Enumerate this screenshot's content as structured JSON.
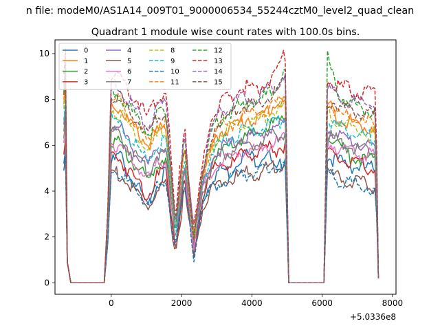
{
  "chart_data": {
    "type": "line",
    "suptitle": "n file: modeM0/AS1A14_009T01_9000006534_55244cztM0_level2_quad_clean",
    "title": "Quadrant 1 module wise count rates with 100.0s bins.",
    "xlabel": "",
    "ylabel": "",
    "x_offset_label": "+5.0336e8",
    "xlim": [
      -1600,
      8100
    ],
    "ylim": [
      -0.5,
      10.6
    ],
    "xticks": [
      0,
      2000,
      4000,
      6000,
      8000
    ],
    "xtick_labels": [
      "0",
      "2000",
      "4000",
      "6000",
      "8000"
    ],
    "yticks": [
      0,
      2,
      4,
      6,
      8,
      10
    ],
    "ytick_labels": [
      "0",
      "2",
      "4",
      "6",
      "8",
      "10"
    ],
    "grid": false,
    "legend_position": "top-left",
    "legend_columns": 4,
    "segments": [
      [
        -1300,
        -200
      ],
      [
        -200,
        5050
      ],
      [
        5050,
        6100
      ],
      [
        6100,
        7600
      ]
    ],
    "series": [
      {
        "name": "0",
        "color": "#1f77b4",
        "dash": "solid",
        "shape": [
          5.2,
          5.6,
          4.6,
          4.1,
          3.2,
          4.4,
          4.8,
          1.2,
          4.8,
          1.5,
          3.6,
          4.6,
          5.0,
          4.8,
          5.5,
          5.6,
          5.3,
          5.8,
          4.7,
          5.6
        ],
        "tail": [
          5.5,
          5.3,
          5.1,
          5.0,
          5.0
        ]
      },
      {
        "name": "1",
        "color": "#ff7f0e",
        "dash": "solid",
        "shape": [
          7.8,
          7.6,
          7.0,
          6.5,
          6.0,
          6.6,
          6.8,
          2.2,
          5.8,
          1.8,
          4.6,
          5.9,
          6.6,
          6.8,
          7.0,
          7.2,
          7.1,
          7.5,
          7.8,
          8.0
        ],
        "tail": [
          7.8,
          7.2,
          7.0,
          6.8,
          6.8
        ]
      },
      {
        "name": "2",
        "color": "#2ca02c",
        "dash": "solid",
        "shape": [
          6.3,
          6.0,
          5.4,
          5.0,
          4.4,
          5.2,
          5.6,
          1.8,
          5.0,
          1.6,
          4.2,
          5.2,
          5.7,
          5.9,
          6.2,
          6.4,
          6.5,
          6.8,
          7.0,
          7.2
        ],
        "tail": [
          6.6,
          6.0,
          5.5,
          5.4,
          5.3
        ]
      },
      {
        "name": "3",
        "color": "#d62728",
        "dash": "solid",
        "shape": [
          5.6,
          5.4,
          4.8,
          4.4,
          3.8,
          4.6,
          5.0,
          1.5,
          4.6,
          1.3,
          3.8,
          4.8,
          5.2,
          5.1,
          5.5,
          5.7,
          5.6,
          5.9,
          5.8,
          6.0
        ],
        "tail": [
          5.6,
          5.4,
          5.2,
          5.1,
          5.0
        ]
      },
      {
        "name": "4",
        "color": "#9467bd",
        "dash": "solid",
        "shape": [
          6.9,
          6.7,
          6.1,
          5.6,
          5.0,
          5.8,
          6.0,
          2.0,
          5.4,
          1.7,
          4.3,
          5.4,
          5.9,
          6.0,
          6.3,
          6.4,
          6.4,
          6.6,
          6.8,
          7.0
        ],
        "tail": [
          6.8,
          6.4,
          6.2,
          6.0,
          5.9
        ]
      },
      {
        "name": "5",
        "color": "#8c564b",
        "dash": "solid",
        "shape": [
          4.9,
          4.7,
          4.2,
          3.8,
          3.3,
          3.9,
          4.2,
          1.3,
          4.1,
          1.1,
          3.3,
          4.1,
          4.5,
          4.4,
          4.7,
          4.8,
          4.7,
          5.0,
          5.1,
          5.2
        ],
        "tail": [
          4.8,
          4.6,
          4.4,
          4.3,
          4.2
        ]
      },
      {
        "name": "6",
        "color": "#e377c2",
        "dash": "solid",
        "shape": [
          6.1,
          6.0,
          5.4,
          5.0,
          4.5,
          5.2,
          5.4,
          1.9,
          5.0,
          1.6,
          4.0,
          4.9,
          5.3,
          5.4,
          5.7,
          5.8,
          5.8,
          6.0,
          6.1,
          6.3
        ],
        "tail": [
          6.2,
          5.9,
          5.7,
          5.6,
          5.5
        ]
      },
      {
        "name": "7",
        "color": "#7f7f7f",
        "dash": "solid",
        "shape": [
          6.6,
          6.4,
          5.8,
          5.3,
          4.8,
          5.6,
          5.8,
          1.9,
          5.2,
          1.7,
          4.1,
          5.1,
          5.6,
          5.7,
          6.0,
          6.1,
          6.1,
          6.3,
          6.4,
          6.6
        ],
        "tail": [
          6.5,
          6.1,
          5.9,
          5.8,
          5.7
        ]
      },
      {
        "name": "8",
        "color": "#bcbd22",
        "dash": "dashed",
        "shape": [
          7.6,
          7.4,
          6.8,
          6.3,
          5.7,
          6.4,
          6.6,
          2.2,
          5.8,
          1.9,
          4.6,
          6.0,
          6.5,
          6.7,
          7.0,
          7.1,
          7.0,
          7.3,
          7.5,
          7.7
        ],
        "tail": [
          7.4,
          7.0,
          6.8,
          6.6,
          6.5
        ]
      },
      {
        "name": "9",
        "color": "#17becf",
        "dash": "dashed",
        "shape": [
          7.1,
          6.9,
          6.3,
          5.8,
          5.3,
          6.0,
          6.2,
          2.1,
          5.6,
          1.8,
          4.5,
          5.7,
          6.1,
          6.3,
          6.6,
          6.7,
          6.6,
          6.9,
          7.0,
          7.2
        ],
        "tail": [
          7.1,
          6.8,
          6.6,
          6.4,
          6.3
        ]
      },
      {
        "name": "10",
        "color": "#1f77b4",
        "dash": "dashed",
        "shape": [
          4.9,
          4.8,
          4.3,
          3.9,
          3.5,
          4.1,
          4.4,
          1.4,
          4.2,
          1.2,
          3.4,
          4.1,
          4.4,
          4.5,
          4.7,
          4.8,
          4.8,
          5.0,
          5.1,
          5.2
        ],
        "tail": [
          4.7,
          4.5,
          4.3,
          4.2,
          4.1
        ]
      },
      {
        "name": "11",
        "color": "#ff7f0e",
        "dash": "dashed",
        "shape": [
          8.0,
          7.8,
          7.2,
          6.7,
          6.1,
          6.8,
          7.0,
          2.3,
          6.0,
          2.0,
          4.7,
          6.2,
          6.8,
          6.9,
          7.2,
          7.4,
          7.3,
          7.6,
          7.8,
          8.1
        ],
        "tail": [
          7.9,
          7.4,
          7.2,
          7.0,
          6.9
        ]
      },
      {
        "name": "12",
        "color": "#2ca02c",
        "dash": "dashed",
        "shape": [
          8.3,
          8.2,
          7.6,
          7.1,
          6.5,
          7.3,
          7.5,
          2.5,
          6.2,
          2.0,
          4.9,
          6.6,
          7.2,
          7.4,
          7.7,
          7.9,
          7.9,
          8.2,
          8.5,
          9.2
        ],
        "tail": [
          9.8,
          8.2,
          7.8,
          7.6,
          7.5
        ]
      },
      {
        "name": "13",
        "color": "#d62728",
        "dash": "dashed",
        "shape": [
          9.1,
          9.0,
          8.4,
          7.9,
          7.2,
          8.1,
          8.4,
          2.7,
          7.0,
          2.2,
          5.2,
          7.3,
          7.9,
          8.1,
          8.4,
          8.6,
          8.5,
          8.8,
          9.2,
          10.0
        ],
        "tail": [
          8.8,
          8.6,
          8.4,
          8.3,
          8.3
        ]
      },
      {
        "name": "14",
        "color": "#9467bd",
        "dash": "dashed",
        "shape": [
          8.6,
          8.5,
          7.9,
          7.4,
          6.8,
          7.6,
          7.9,
          2.5,
          6.5,
          2.1,
          4.9,
          6.9,
          7.5,
          7.7,
          8.0,
          8.1,
          8.0,
          8.4,
          8.7,
          9.2
        ],
        "tail": [
          8.4,
          8.1,
          7.9,
          7.8,
          7.8
        ]
      },
      {
        "name": "15",
        "color": "#8c564b",
        "dash": "dashed",
        "shape": [
          8.2,
          8.1,
          7.5,
          7.0,
          6.4,
          7.2,
          7.4,
          2.4,
          6.3,
          2.0,
          4.7,
          6.6,
          7.1,
          7.3,
          7.6,
          7.8,
          7.7,
          8.0,
          8.3,
          8.7
        ],
        "tail": [
          8.0,
          7.7,
          7.5,
          7.4,
          7.3
        ]
      }
    ]
  }
}
